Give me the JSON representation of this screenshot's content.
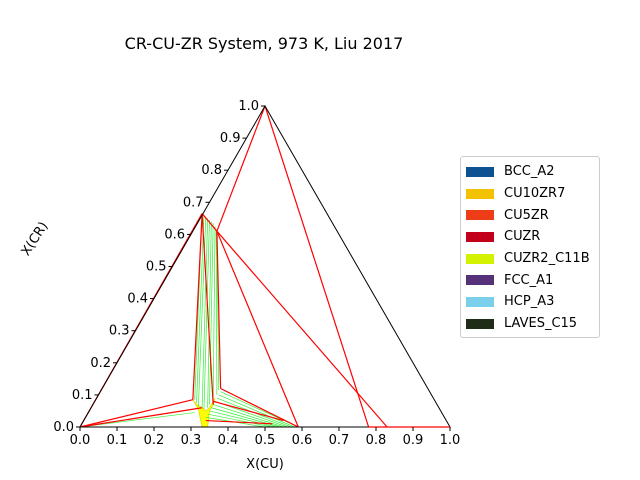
{
  "chart_data": {
    "type": "ternary",
    "title": "CR-CU-ZR System, 973 K, Liu 2017",
    "xlabel": "X(CU)",
    "ylabel": "X(CR)",
    "xticks": [
      "0.0",
      "0.1",
      "0.2",
      "0.3",
      "0.4",
      "0.5",
      "0.6",
      "0.7",
      "0.8",
      "0.9",
      "1.0"
    ],
    "yticks": [
      "0.0",
      "0.1",
      "0.2",
      "0.3",
      "0.4",
      "0.5",
      "0.6",
      "0.7",
      "0.8",
      "0.9",
      "1.0"
    ],
    "legend_position": "right",
    "legend": [
      {
        "name": "BCC_A2",
        "color": "#0c5291"
      },
      {
        "name": "CU10ZR7",
        "color": "#f2c200"
      },
      {
        "name": "CU5ZR",
        "color": "#ee3b18"
      },
      {
        "name": "CUZR",
        "color": "#c3001b"
      },
      {
        "name": "CUZR2_C11B",
        "color": "#d3f200"
      },
      {
        "name": "FCC_A1",
        "color": "#56327b"
      },
      {
        "name": "HCP_A3",
        "color": "#7acfea"
      },
      {
        "name": "LAVES_C15",
        "color": "#1e2c18"
      }
    ],
    "boundary_color": "#ff0000",
    "tieline_color": "#33ee33",
    "boundaries": [
      [
        [
          0.0,
          0.0
        ],
        [
          0.33,
          0.665
        ]
      ],
      [
        [
          0.0,
          0.0
        ],
        [
          0.305,
          0.085
        ]
      ],
      [
        [
          0.305,
          0.085
        ],
        [
          0.33,
          0.665
        ]
      ],
      [
        [
          0.33,
          0.665
        ],
        [
          0.37,
          0.61
        ]
      ],
      [
        [
          0.37,
          0.61
        ],
        [
          0.5,
          1.0
        ]
      ],
      [
        [
          0.37,
          0.61
        ],
        [
          0.59,
          0.0
        ]
      ],
      [
        [
          0.37,
          0.61
        ],
        [
          0.38,
          0.12
        ]
      ],
      [
        [
          0.38,
          0.12
        ],
        [
          0.59,
          0.0
        ]
      ],
      [
        [
          0.37,
          0.61
        ],
        [
          0.83,
          0.0
        ]
      ],
      [
        [
          0.5,
          1.0
        ],
        [
          0.78,
          0.0
        ]
      ],
      [
        [
          0.33,
          0.665
        ],
        [
          0.36,
          0.07
        ]
      ],
      [
        [
          0.36,
          0.08
        ],
        [
          0.55,
          0.02
        ]
      ],
      [
        [
          0.34,
          0.02
        ],
        [
          0.52,
          0.01
        ]
      ],
      [
        [
          0.0,
          0.0
        ],
        [
          0.33,
          0.06
        ]
      ]
    ],
    "tielines": [
      [
        [
          0.31,
          0.085
        ],
        [
          0.33,
          0.665
        ]
      ],
      [
        [
          0.315,
          0.075
        ],
        [
          0.335,
          0.66
        ]
      ],
      [
        [
          0.32,
          0.065
        ],
        [
          0.34,
          0.655
        ]
      ],
      [
        [
          0.33,
          0.06
        ],
        [
          0.345,
          0.65
        ]
      ],
      [
        [
          0.335,
          0.055
        ],
        [
          0.35,
          0.645
        ]
      ],
      [
        [
          0.345,
          0.06
        ],
        [
          0.355,
          0.64
        ]
      ],
      [
        [
          0.35,
          0.07
        ],
        [
          0.36,
          0.635
        ]
      ],
      [
        [
          0.36,
          0.08
        ],
        [
          0.365,
          0.625
        ]
      ],
      [
        [
          0.37,
          0.1
        ],
        [
          0.368,
          0.615
        ]
      ],
      [
        [
          0.375,
          0.115
        ],
        [
          0.37,
          0.61
        ]
      ],
      [
        [
          0.38,
          0.11
        ],
        [
          0.59,
          0.0
        ]
      ],
      [
        [
          0.375,
          0.1
        ],
        [
          0.58,
          0.0
        ]
      ],
      [
        [
          0.37,
          0.09
        ],
        [
          0.57,
          0.0
        ]
      ],
      [
        [
          0.365,
          0.08
        ],
        [
          0.56,
          0.0
        ]
      ],
      [
        [
          0.36,
          0.07
        ],
        [
          0.55,
          0.0
        ]
      ],
      [
        [
          0.355,
          0.06
        ],
        [
          0.54,
          0.0
        ]
      ],
      [
        [
          0.35,
          0.05
        ],
        [
          0.53,
          0.0
        ]
      ],
      [
        [
          0.345,
          0.04
        ],
        [
          0.52,
          0.0
        ]
      ],
      [
        [
          0.34,
          0.03
        ],
        [
          0.5,
          0.0
        ]
      ],
      [
        [
          0.0,
          0.0
        ],
        [
          0.305,
          0.055
        ]
      ],
      [
        [
          0.0,
          0.0
        ],
        [
          0.31,
          0.045
        ]
      ]
    ],
    "yellow_region": [
      [
        0.305,
        0.085
      ],
      [
        0.32,
        0.055
      ],
      [
        0.33,
        0.0
      ],
      [
        0.345,
        0.0
      ],
      [
        0.35,
        0.05
      ],
      [
        0.36,
        0.07
      ],
      [
        0.365,
        0.09
      ],
      [
        0.35,
        0.06
      ],
      [
        0.34,
        0.05
      ],
      [
        0.33,
        0.06
      ],
      [
        0.315,
        0.07
      ]
    ]
  }
}
